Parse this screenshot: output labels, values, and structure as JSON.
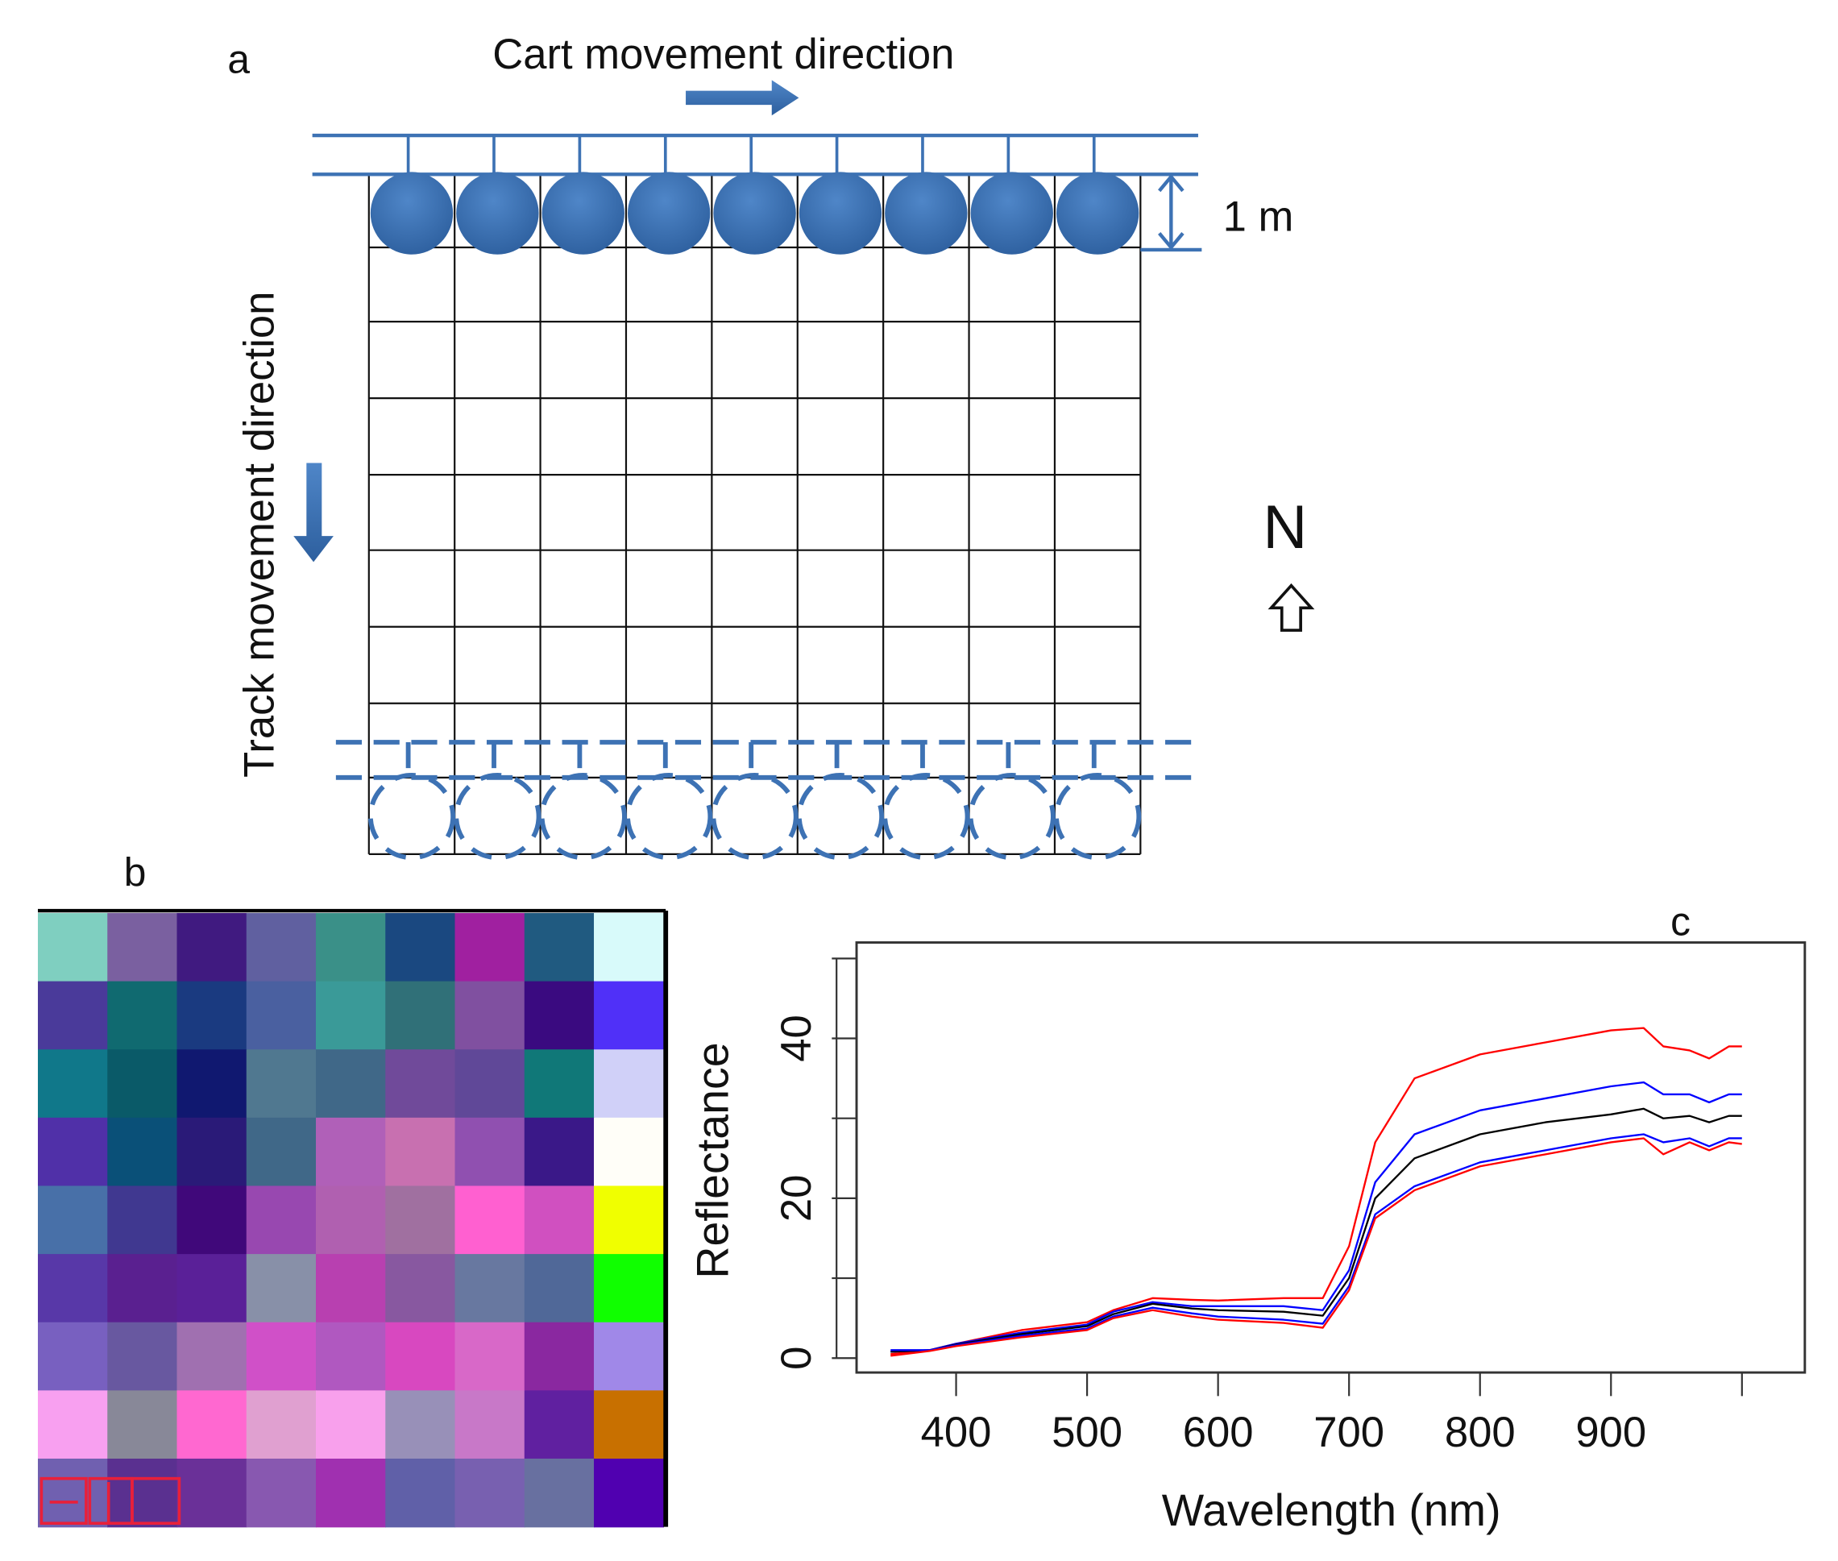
{
  "panel_a": {
    "label": "a",
    "cart_direction_label": "Cart movement direction",
    "track_direction_label": "Track movement direction",
    "scale_label": "1 m",
    "north_label": "N",
    "grid_columns": 9,
    "grid_rows": 9,
    "accent_color": "#3d72b4"
  },
  "panel_b": {
    "label": "b",
    "cells": [
      [
        "#7fcfc0",
        "#7a60a0",
        "#401a80",
        "#6060a0",
        "#3a9088",
        "#1a4880",
        "#a020a0",
        "#205a80",
        "#d8fafa"
      ],
      [
        "#4a3a9a",
        "#106a70",
        "#1a3a80",
        "#4a60a0",
        "#3a9a98",
        "#307078",
        "#8050a0",
        "#3a0a80",
        "#5030f8"
      ],
      [
        "#10788a",
        "#0a5a68",
        "#101870",
        "#507890",
        "#406888",
        "#704a9a",
        "#604898",
        "#107878",
        "#d0d0f8"
      ],
      [
        "#5030a8",
        "#0a5078",
        "#2a1a78",
        "#406888",
        "#b060b8",
        "#c870b0",
        "#9050b0",
        "#3a1888",
        "#fffef8"
      ],
      [
        "#4870a8",
        "#403890",
        "#40087a",
        "#9848b0",
        "#b060b0",
        "#a070a0",
        "#ff60d0",
        "#d050c0",
        "#f0ff00"
      ],
      [
        "#5838a8",
        "#5a2090",
        "#5a2098",
        "#8890a8",
        "#b840b0",
        "#8858a0",
        "#6878a0",
        "#506898",
        "#10ff00"
      ],
      [
        "#7860c0",
        "#6858a0",
        "#a070b0",
        "#d050c8",
        "#b058c0",
        "#d848c0",
        "#d868c8",
        "#8a28a0",
        "#a088e8"
      ],
      [
        "#f8a0f0",
        "#888898",
        "#ff68d0",
        "#e0a0d0",
        "#f8a0ec",
        "#9890b8",
        "#c878c8",
        "#6020a0",
        "#c87000"
      ],
      [
        "#7060b0",
        "#5a3090",
        "#6a3098",
        "#8858b0",
        "#a030b0",
        "#6060a8",
        "#7860b0",
        "#6870a0",
        "#5000b0"
      ]
    ]
  },
  "chart_data": {
    "type": "line",
    "panel_label": "c",
    "xlabel": "Wavelength (nm)",
    "ylabel": "Reflectance",
    "xlim": [
      324,
      1048
    ],
    "ylim": [
      -1.8,
      52
    ],
    "xticks": [
      400,
      500,
      600,
      700,
      800,
      900,
      1000
    ],
    "xtick_labels": [
      "400",
      "500",
      "600",
      "700",
      "800",
      "900",
      ""
    ],
    "yticks": [
      0,
      10,
      20,
      30,
      40,
      50
    ],
    "ytick_labels": [
      "0",
      "",
      "20",
      "",
      "40",
      ""
    ],
    "grid": false,
    "x": [
      350,
      380,
      400,
      450,
      500,
      520,
      550,
      580,
      600,
      650,
      680,
      700,
      720,
      750,
      800,
      850,
      900,
      925,
      940,
      960,
      975,
      990,
      1000
    ],
    "series": [
      {
        "name": "upper-red",
        "color": "#ff0000",
        "values": [
          0.5,
          1,
          1.8,
          3.5,
          4.5,
          6,
          7.5,
          7.3,
          7.2,
          7.5,
          7.5,
          14,
          27,
          35,
          38,
          39.5,
          41,
          41.3,
          39,
          38.5,
          37.5,
          39,
          39
        ]
      },
      {
        "name": "upper-blue",
        "color": "#0000ff",
        "values": [
          0.8,
          1,
          1.8,
          3.2,
          4.2,
          5.8,
          7,
          6.5,
          6.5,
          6.5,
          6,
          11,
          22,
          28,
          31,
          32.5,
          34,
          34.5,
          33,
          33,
          32,
          33,
          33
        ]
      },
      {
        "name": "mean-black",
        "color": "#000000",
        "values": [
          0.8,
          1,
          1.7,
          3,
          4,
          5.5,
          6.8,
          6.2,
          6,
          5.8,
          5.3,
          10,
          20,
          25,
          28,
          29.5,
          30.5,
          31.2,
          30,
          30.3,
          29.5,
          30.3,
          30.3
        ]
      },
      {
        "name": "lower-blue",
        "color": "#0000ff",
        "values": [
          1,
          1,
          1.6,
          2.8,
          3.7,
          5.2,
          6.3,
          5.6,
          5.2,
          4.8,
          4.3,
          9,
          18,
          21.5,
          24.5,
          26,
          27.5,
          28,
          27,
          27.5,
          26.5,
          27.5,
          27.5
        ]
      },
      {
        "name": "lower-red",
        "color": "#ff0000",
        "values": [
          0.3,
          0.9,
          1.5,
          2.6,
          3.5,
          5,
          6,
          5.2,
          4.8,
          4.4,
          3.8,
          8.5,
          17.5,
          21,
          24,
          25.5,
          27,
          27.5,
          25.5,
          27,
          26,
          27,
          26.8
        ]
      }
    ]
  }
}
